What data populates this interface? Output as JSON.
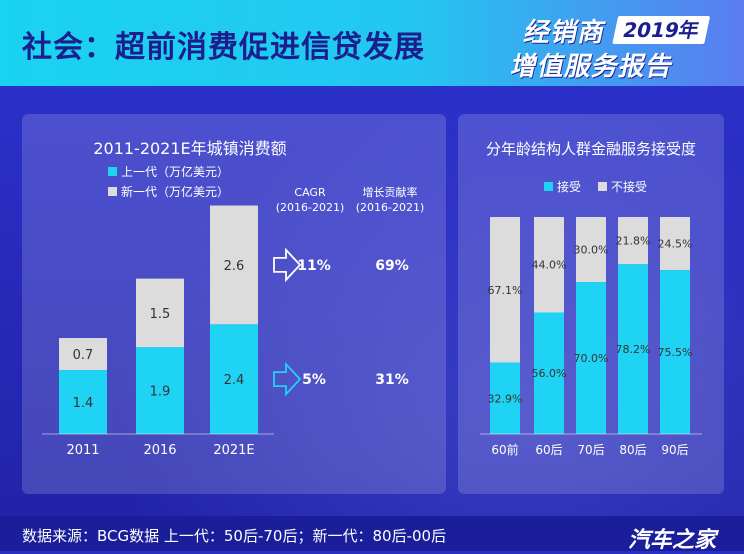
{
  "header": {
    "title": "社会：超前消费促进信贷发展",
    "brand_main": "经销商",
    "brand_year": "2019年",
    "brand_sub": "增值服务报告"
  },
  "footer": {
    "note": "数据来源：BCG数据   上一代：50后-70后；新一代：80后-00后",
    "watermark": "汽车之家"
  },
  "colors": {
    "cyan": "#1fd3f4",
    "grey": "#dcdcdc",
    "navy": "#1b1f8d"
  },
  "chart_data": [
    {
      "type": "bar",
      "stacked": true,
      "title": "2011-2021E年城镇消费额",
      "categories": [
        "2011",
        "2016",
        "2021E"
      ],
      "series": [
        {
          "name": "上一代（万亿美元）",
          "values": [
            1.4,
            1.9,
            2.4
          ],
          "color": "#1fd3f4"
        },
        {
          "name": "新一代（万亿美元）",
          "values": [
            0.7,
            1.5,
            2.6
          ],
          "color": "#dcdcdc"
        }
      ],
      "legend": "top-left",
      "columns": {
        "cagr_header": "CAGR",
        "cagr_sub": "(2016-2021)",
        "contrib_header": "增长贡献率",
        "contrib_sub": "(2016-2021)"
      },
      "annotations": [
        {
          "series": "新一代（万亿美元）",
          "cagr": "11%",
          "contribution": "69%"
        },
        {
          "series": "上一代（万亿美元）",
          "cagr": "5%",
          "contribution": "31%"
        }
      ],
      "ylim": [
        0,
        5.5
      ]
    },
    {
      "type": "bar",
      "stacked": true,
      "percent": true,
      "title": "分年龄结构人群金融服务接受度",
      "categories": [
        "60前",
        "60后",
        "70后",
        "80后",
        "90后"
      ],
      "series": [
        {
          "name": "接受",
          "values": [
            32.9,
            56.0,
            70.0,
            78.2,
            75.5
          ],
          "color": "#1fd3f4"
        },
        {
          "name": "不接受",
          "values": [
            67.1,
            44.0,
            30.0,
            21.8,
            24.5
          ],
          "color": "#dcdcdc"
        }
      ],
      "legend": "top-center",
      "ylim": [
        0,
        100
      ]
    }
  ]
}
